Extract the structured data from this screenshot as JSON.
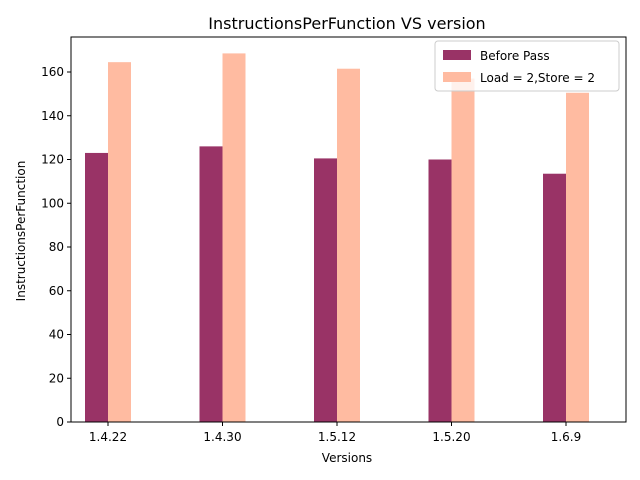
{
  "chart_data": {
    "type": "bar",
    "title": "InstructionsPerFunction VS version",
    "xlabel": "Versions",
    "ylabel": "InstructionsPerFunction",
    "categories": [
      "1.4.22",
      "1.4.30",
      "1.5.12",
      "1.5.20",
      "1.6.9"
    ],
    "series": [
      {
        "name": "Before Pass",
        "values": [
          123,
          126,
          120.5,
          120,
          113.5
        ],
        "color": "#993366"
      },
      {
        "name": "Load = 2,Store = 2",
        "values": [
          164.5,
          168.5,
          161.5,
          157,
          150.5
        ],
        "color": "#ffbba1"
      }
    ],
    "ylim": [
      0,
      176
    ],
    "yticks": [
      0,
      20,
      40,
      60,
      80,
      100,
      120,
      140,
      160
    ],
    "grid": false,
    "legend": "top-right"
  }
}
